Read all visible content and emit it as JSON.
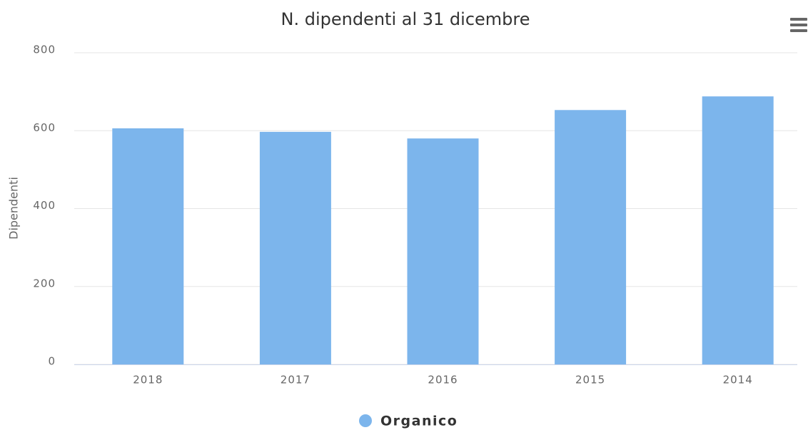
{
  "chart_data": {
    "type": "bar",
    "title": "N. dipendenti al 31 dicembre",
    "y_axis_label": "Dipendenti",
    "categories": [
      "2018",
      "2017",
      "2016",
      "2015",
      "2014"
    ],
    "series": [
      {
        "name": "Organico",
        "color": "#7cb5ec",
        "values": [
          606,
          597,
          580,
          653,
          688
        ]
      }
    ],
    "ylim": [
      0,
      800
    ],
    "yticks": [
      0,
      200,
      400,
      600,
      800
    ],
    "grid": true,
    "legend": "bottom"
  }
}
